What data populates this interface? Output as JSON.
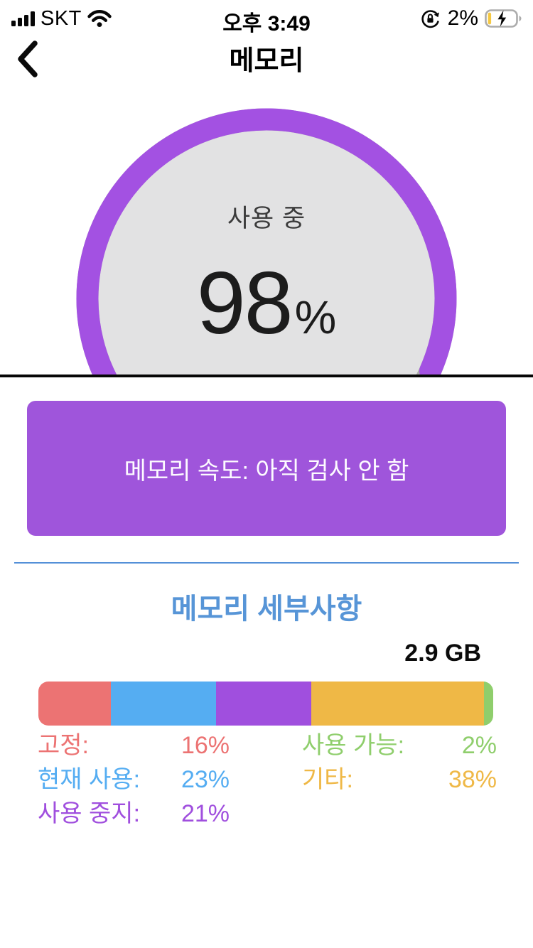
{
  "status_bar": {
    "carrier": "SKT",
    "time": "오후 3:49",
    "battery_percent": "2%",
    "icons": [
      "signal-bars-icon",
      "wifi-icon",
      "orientation-lock-icon",
      "battery-charging-icon"
    ],
    "battery_fill_color": "#F5C843"
  },
  "nav": {
    "title": "메모리",
    "back_icon": "chevron-left"
  },
  "gauge": {
    "label": "사용 중",
    "value": "98",
    "unit": "%",
    "percent": 98,
    "ring_color": "#A351E2",
    "track_color": "#ABABAB",
    "fill_color": "#E2E2E3"
  },
  "speed_button": {
    "label": "메모리 속도: 아직 검사 안 함",
    "color": "#9F55DB"
  },
  "details": {
    "heading": "메모리 세부사항",
    "heading_color": "#5795D7",
    "divider_color": "#5490D8",
    "total_label": "2.9 GB"
  },
  "chart_data": {
    "type": "bar",
    "title": "메모리 세부사항",
    "total_label": "2.9 GB",
    "segments": [
      {
        "label": "고정",
        "value": 16,
        "color": "#EC7373"
      },
      {
        "label": "현재 사용",
        "value": 23,
        "color": "#55ADF2"
      },
      {
        "label": "사용 중지",
        "value": 21,
        "color": "#A04FDE"
      },
      {
        "label": "기타",
        "value": 38,
        "color": "#EFB846"
      },
      {
        "label": "사용 가능",
        "value": 2,
        "color": "#8FCE6C"
      }
    ]
  },
  "legend": {
    "left": [
      {
        "label": "고정:",
        "value": "16%",
        "color": "#EC7373"
      },
      {
        "label": "현재 사용:",
        "value": "23%",
        "color": "#55ADF2"
      },
      {
        "label": "사용 중지:",
        "value": "21%",
        "color": "#A04FDE"
      }
    ],
    "right": [
      {
        "label": "사용 가능:",
        "value": "2%",
        "color": "#8FCE6C"
      },
      {
        "label": "기타:",
        "value": "38%",
        "color": "#EFB846"
      }
    ]
  }
}
